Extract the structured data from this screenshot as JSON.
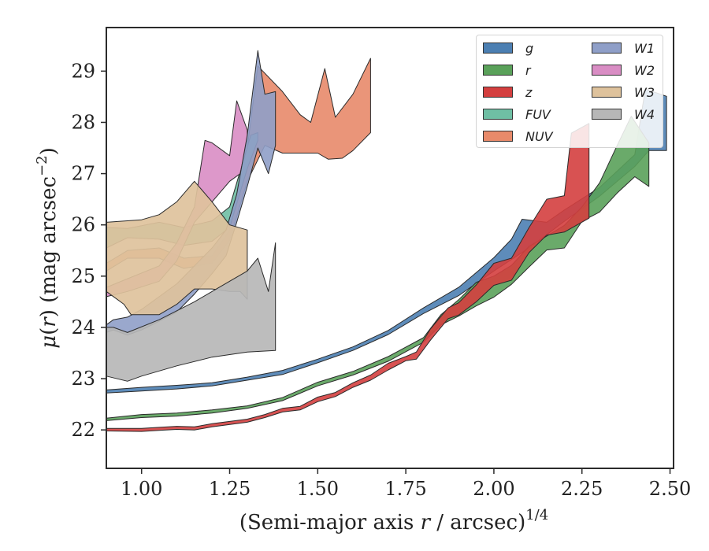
{
  "chart_data": {
    "type": "area",
    "xlabel": "(Semi-major axis r / arcsec)^1/4",
    "ylabel": "μ(r) (mag arcsec^−2)",
    "xlim": [
      0.9,
      2.51
    ],
    "ylim": [
      29.85,
      21.25
    ],
    "y_inverted": true,
    "x_ticks": [
      "1.00",
      "1.25",
      "1.50",
      "1.75",
      "2.00",
      "2.25",
      "2.50"
    ],
    "y_ticks": [
      "22",
      "23",
      "24",
      "25",
      "26",
      "27",
      "28",
      "29"
    ],
    "grid": false,
    "legend_position": "top-right",
    "series": [
      {
        "name": "g",
        "color": "#4c7fb2",
        "upper": [
          [
            0.9,
            22.72
          ],
          [
            1.0,
            22.76
          ],
          [
            1.1,
            22.8
          ],
          [
            1.2,
            22.86
          ],
          [
            1.3,
            22.97
          ],
          [
            1.4,
            23.08
          ],
          [
            1.5,
            23.31
          ],
          [
            1.6,
            23.55
          ],
          [
            1.7,
            23.86
          ],
          [
            1.8,
            24.27
          ],
          [
            1.9,
            24.62
          ],
          [
            2.0,
            25.1
          ],
          [
            2.1,
            25.55
          ],
          [
            2.2,
            26.07
          ],
          [
            2.3,
            26.56
          ],
          [
            2.4,
            27.14
          ],
          [
            2.44,
            27.45
          ],
          [
            2.49,
            27.45
          ]
        ],
        "lower": [
          [
            0.9,
            22.78
          ],
          [
            1.0,
            22.83
          ],
          [
            1.1,
            22.87
          ],
          [
            1.2,
            22.92
          ],
          [
            1.3,
            23.03
          ],
          [
            1.4,
            23.16
          ],
          [
            1.5,
            23.38
          ],
          [
            1.6,
            23.62
          ],
          [
            1.7,
            23.94
          ],
          [
            1.8,
            24.38
          ],
          [
            1.9,
            24.78
          ],
          [
            1.95,
            25.07
          ],
          [
            2.0,
            25.36
          ],
          [
            2.05,
            25.72
          ],
          [
            2.08,
            26.11
          ],
          [
            2.15,
            26.05
          ],
          [
            2.2,
            26.29
          ],
          [
            2.3,
            26.73
          ],
          [
            2.4,
            27.37
          ],
          [
            2.43,
            28.65
          ],
          [
            2.49,
            28.51
          ]
        ]
      },
      {
        "name": "r",
        "color": "#5aa15a",
        "upper": [
          [
            0.9,
            22.18
          ],
          [
            1.0,
            22.24
          ],
          [
            1.1,
            22.27
          ],
          [
            1.2,
            22.33
          ],
          [
            1.3,
            22.42
          ],
          [
            1.4,
            22.57
          ],
          [
            1.5,
            22.86
          ],
          [
            1.6,
            23.07
          ],
          [
            1.7,
            23.34
          ],
          [
            1.8,
            23.71
          ],
          [
            1.85,
            24.05
          ],
          [
            1.9,
            24.22
          ],
          [
            1.95,
            24.42
          ],
          [
            2.0,
            24.59
          ],
          [
            2.05,
            24.84
          ],
          [
            2.1,
            25.18
          ],
          [
            2.15,
            25.51
          ],
          [
            2.2,
            25.55
          ],
          [
            2.25,
            26.07
          ],
          [
            2.3,
            26.25
          ],
          [
            2.35,
            26.62
          ],
          [
            2.4,
            26.94
          ],
          [
            2.44,
            26.75
          ]
        ],
        "lower": [
          [
            0.9,
            22.23
          ],
          [
            1.0,
            22.3
          ],
          [
            1.1,
            22.33
          ],
          [
            1.2,
            22.39
          ],
          [
            1.3,
            22.47
          ],
          [
            1.4,
            22.63
          ],
          [
            1.5,
            22.93
          ],
          [
            1.6,
            23.14
          ],
          [
            1.7,
            23.43
          ],
          [
            1.8,
            23.8
          ],
          [
            1.85,
            24.25
          ],
          [
            1.9,
            24.54
          ],
          [
            1.95,
            24.88
          ],
          [
            2.0,
            25.0
          ],
          [
            2.05,
            25.21
          ],
          [
            2.1,
            25.58
          ],
          [
            2.15,
            25.78
          ],
          [
            2.2,
            25.99
          ],
          [
            2.25,
            26.35
          ],
          [
            2.3,
            26.82
          ],
          [
            2.35,
            27.55
          ],
          [
            2.39,
            28.12
          ],
          [
            2.44,
            27.6
          ]
        ]
      },
      {
        "name": "z",
        "color": "#d43f3f",
        "upper": [
          [
            0.9,
            21.98
          ],
          [
            1.0,
            21.97
          ],
          [
            1.05,
            21.99
          ],
          [
            1.1,
            22.01
          ],
          [
            1.15,
            22.0
          ],
          [
            1.2,
            22.06
          ],
          [
            1.3,
            22.15
          ],
          [
            1.35,
            22.24
          ],
          [
            1.4,
            22.35
          ],
          [
            1.45,
            22.39
          ],
          [
            1.5,
            22.55
          ],
          [
            1.55,
            22.65
          ],
          [
            1.6,
            22.83
          ],
          [
            1.65,
            22.97
          ],
          [
            1.7,
            23.17
          ],
          [
            1.75,
            23.35
          ],
          [
            1.78,
            23.38
          ],
          [
            1.82,
            23.75
          ],
          [
            1.87,
            24.17
          ],
          [
            1.9,
            24.24
          ],
          [
            1.95,
            24.5
          ],
          [
            2.0,
            24.82
          ],
          [
            2.05,
            24.92
          ],
          [
            2.1,
            25.46
          ],
          [
            2.15,
            25.8
          ],
          [
            2.2,
            25.86
          ],
          [
            2.27,
            26.13
          ]
        ],
        "lower": [
          [
            0.9,
            22.03
          ],
          [
            1.0,
            22.03
          ],
          [
            1.05,
            22.05
          ],
          [
            1.1,
            22.07
          ],
          [
            1.15,
            22.06
          ],
          [
            1.2,
            22.12
          ],
          [
            1.3,
            22.21
          ],
          [
            1.35,
            22.3
          ],
          [
            1.4,
            22.42
          ],
          [
            1.45,
            22.46
          ],
          [
            1.5,
            22.64
          ],
          [
            1.55,
            22.73
          ],
          [
            1.6,
            22.92
          ],
          [
            1.65,
            23.07
          ],
          [
            1.7,
            23.3
          ],
          [
            1.75,
            23.43
          ],
          [
            1.78,
            23.52
          ],
          [
            1.82,
            23.97
          ],
          [
            1.87,
            24.38
          ],
          [
            1.9,
            24.48
          ],
          [
            1.95,
            24.83
          ],
          [
            2.0,
            25.25
          ],
          [
            2.05,
            25.35
          ],
          [
            2.1,
            25.95
          ],
          [
            2.15,
            26.5
          ],
          [
            2.2,
            26.57
          ],
          [
            2.22,
            27.79
          ],
          [
            2.27,
            27.98
          ]
        ]
      },
      {
        "name": "FUV",
        "color": "#6fbfa4",
        "upper": [
          [
            0.9,
            25.55
          ],
          [
            0.96,
            25.75
          ],
          [
            1.05,
            25.72
          ],
          [
            1.12,
            25.6
          ],
          [
            1.2,
            25.68
          ],
          [
            1.25,
            25.95
          ],
          [
            1.3,
            27.1
          ],
          [
            1.33,
            27.65
          ]
        ],
        "lower": [
          [
            0.9,
            25.95
          ],
          [
            0.96,
            25.93
          ],
          [
            1.05,
            26.05
          ],
          [
            1.12,
            25.95
          ],
          [
            1.2,
            26.08
          ],
          [
            1.25,
            26.35
          ],
          [
            1.28,
            27.05
          ],
          [
            1.31,
            27.75
          ],
          [
            1.33,
            27.8
          ]
        ]
      },
      {
        "name": "NUV",
        "color": "#e88a6a",
        "upper": [
          [
            0.9,
            25.1
          ],
          [
            0.96,
            25.35
          ],
          [
            1.05,
            25.35
          ],
          [
            1.12,
            25.15
          ],
          [
            1.2,
            25.25
          ],
          [
            1.25,
            25.7
          ],
          [
            1.3,
            26.85
          ],
          [
            1.35,
            27.55
          ],
          [
            1.4,
            27.4
          ],
          [
            1.45,
            27.4
          ],
          [
            1.5,
            27.4
          ],
          [
            1.53,
            27.28
          ],
          [
            1.57,
            27.3
          ],
          [
            1.6,
            27.45
          ],
          [
            1.65,
            27.8
          ]
        ],
        "lower": [
          [
            0.9,
            25.25
          ],
          [
            0.96,
            25.5
          ],
          [
            1.05,
            25.55
          ],
          [
            1.12,
            25.35
          ],
          [
            1.2,
            25.4
          ],
          [
            1.25,
            25.9
          ],
          [
            1.3,
            27.5
          ],
          [
            1.33,
            29.1
          ],
          [
            1.4,
            28.6
          ],
          [
            1.45,
            28.15
          ],
          [
            1.48,
            28.0
          ],
          [
            1.52,
            29.05
          ],
          [
            1.55,
            28.1
          ],
          [
            1.6,
            28.55
          ],
          [
            1.65,
            29.25
          ]
        ]
      },
      {
        "name": "W1",
        "color": "#8f9fc8",
        "upper": [
          [
            0.9,
            23.9
          ],
          [
            0.92,
            23.95
          ],
          [
            0.96,
            23.85
          ],
          [
            1.0,
            23.95
          ],
          [
            1.05,
            24.12
          ],
          [
            1.1,
            24.3
          ],
          [
            1.15,
            24.65
          ],
          [
            1.2,
            25.05
          ],
          [
            1.24,
            25.4
          ],
          [
            1.27,
            26.05
          ],
          [
            1.3,
            26.75
          ],
          [
            1.33,
            27.5
          ],
          [
            1.36,
            27.0
          ],
          [
            1.38,
            27.55
          ]
        ],
        "lower": [
          [
            0.9,
            24.05
          ],
          [
            0.92,
            24.15
          ],
          [
            0.96,
            24.2
          ],
          [
            1.0,
            24.35
          ],
          [
            1.05,
            24.6
          ],
          [
            1.1,
            24.85
          ],
          [
            1.15,
            25.2
          ],
          [
            1.2,
            25.55
          ],
          [
            1.24,
            25.9
          ],
          [
            1.27,
            26.6
          ],
          [
            1.3,
            27.75
          ],
          [
            1.33,
            29.4
          ],
          [
            1.35,
            28.55
          ],
          [
            1.38,
            28.6
          ]
        ]
      },
      {
        "name": "W2",
        "color": "#d98dc4",
        "upper": [
          [
            0.9,
            24.6
          ],
          [
            0.96,
            24.7
          ],
          [
            1.05,
            24.9
          ],
          [
            1.1,
            25.3
          ],
          [
            1.15,
            26.05
          ],
          [
            1.2,
            26.45
          ],
          [
            1.25,
            26.85
          ],
          [
            1.28,
            27.0
          ],
          [
            1.3,
            27.65
          ]
        ],
        "lower": [
          [
            0.9,
            24.78
          ],
          [
            0.96,
            24.95
          ],
          [
            1.05,
            25.2
          ],
          [
            1.1,
            25.65
          ],
          [
            1.15,
            26.35
          ],
          [
            1.18,
            27.65
          ],
          [
            1.2,
            27.6
          ],
          [
            1.25,
            27.35
          ],
          [
            1.27,
            28.42
          ],
          [
            1.3,
            27.85
          ]
        ]
      },
      {
        "name": "W3",
        "color": "#dec29c",
        "upper": [
          [
            0.9,
            24.7
          ],
          [
            0.95,
            24.45
          ],
          [
            0.97,
            24.25
          ],
          [
            1.05,
            24.25
          ],
          [
            1.1,
            24.45
          ],
          [
            1.15,
            24.75
          ],
          [
            1.2,
            24.75
          ],
          [
            1.25,
            24.7
          ],
          [
            1.28,
            24.7
          ],
          [
            1.3,
            24.55
          ]
        ],
        "lower": [
          [
            0.9,
            26.05
          ],
          [
            1.0,
            26.1
          ],
          [
            1.05,
            26.2
          ],
          [
            1.1,
            26.45
          ],
          [
            1.15,
            26.85
          ],
          [
            1.2,
            26.45
          ],
          [
            1.25,
            26.0
          ],
          [
            1.3,
            25.9
          ]
        ]
      },
      {
        "name": "W4",
        "color": "#b7b7b7",
        "upper": [
          [
            0.9,
            23.05
          ],
          [
            0.96,
            22.95
          ],
          [
            1.0,
            23.05
          ],
          [
            1.1,
            23.25
          ],
          [
            1.2,
            23.42
          ],
          [
            1.3,
            23.52
          ],
          [
            1.38,
            23.55
          ]
        ],
        "lower": [
          [
            0.9,
            24.0
          ],
          [
            0.92,
            24.0
          ],
          [
            0.96,
            23.9
          ],
          [
            1.05,
            24.15
          ],
          [
            1.15,
            24.5
          ],
          [
            1.2,
            24.7
          ],
          [
            1.25,
            24.9
          ],
          [
            1.3,
            25.1
          ],
          [
            1.33,
            25.35
          ],
          [
            1.36,
            24.7
          ],
          [
            1.38,
            25.65
          ]
        ]
      }
    ]
  }
}
